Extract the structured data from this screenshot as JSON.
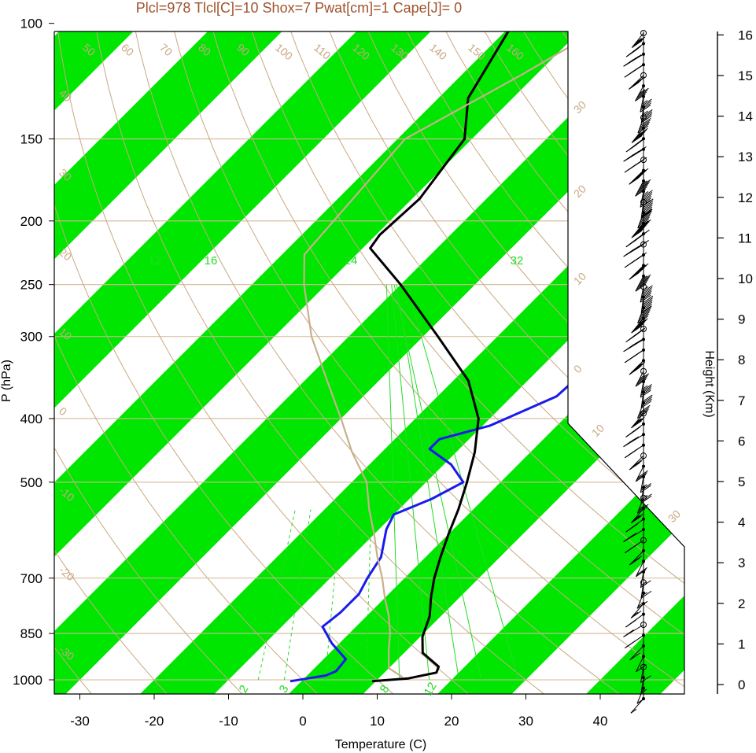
{
  "chart_data": {
    "type": "line",
    "title": "Plcl=978 Tlcl[C]=10 Shox=7 Pwat[cm]=1 Cape[J]= 0",
    "xlabel": "Temperature (C)",
    "ylabel": "P (hPa)",
    "y2label": "Height (Km)",
    "xlim": [
      -34,
      52
    ],
    "ylim_hpa": [
      1050,
      100
    ],
    "y_scale": "log",
    "x_ticks": [
      -30,
      -20,
      -10,
      0,
      10,
      20,
      30,
      40
    ],
    "y_ticks": [
      100,
      150,
      200,
      250,
      300,
      400,
      500,
      700,
      850,
      1000
    ],
    "height_ticks_km": [
      0,
      1,
      2,
      3,
      4,
      5,
      6,
      7,
      8,
      9,
      10,
      11,
      12,
      13,
      14,
      15,
      16
    ],
    "series": [
      {
        "role": "dewpoint",
        "color": "#1a1aee",
        "points": [
          [
            1005,
            -1.5
          ],
          [
            995,
            0.5
          ],
          [
            985,
            2.5
          ],
          [
            970,
            3.3
          ],
          [
            955,
            3.2
          ],
          [
            930,
            3.0
          ],
          [
            880,
            -1.0
          ],
          [
            830,
            -4.5
          ],
          [
            790,
            -4.0
          ],
          [
            740,
            -4.0
          ],
          [
            700,
            -5.0
          ],
          [
            650,
            -6.0
          ],
          [
            590,
            -9.0
          ],
          [
            560,
            -10.0
          ],
          [
            530,
            -7.0
          ],
          [
            500,
            -5.0
          ],
          [
            470,
            -9.0
          ],
          [
            445,
            -14.0
          ],
          [
            430,
            -14.0
          ],
          [
            410,
            -9.0
          ],
          [
            370,
            -4.0
          ],
          [
            330,
            -3.5
          ],
          [
            290,
            -5.0
          ],
          [
            260,
            -5.5
          ],
          [
            220,
            -4.5
          ],
          [
            200,
            -1.5
          ],
          [
            170,
            0.0
          ],
          [
            150,
            2.0
          ],
          [
            100,
            21.0
          ]
        ]
      },
      {
        "role": "temperature",
        "color": "#000000",
        "points": [
          [
            1005,
            9.5
          ],
          [
            995,
            14.0
          ],
          [
            975,
            17.0
          ],
          [
            955,
            16.5
          ],
          [
            910,
            12.5
          ],
          [
            860,
            10.3
          ],
          [
            800,
            8.5
          ],
          [
            750,
            6.2
          ],
          [
            700,
            4.0
          ],
          [
            650,
            2.0
          ],
          [
            600,
            0.0
          ],
          [
            550,
            -2.0
          ],
          [
            500,
            -4.5
          ],
          [
            450,
            -7.5
          ],
          [
            400,
            -11.5
          ],
          [
            350,
            -18.0
          ],
          [
            300,
            -28.0
          ],
          [
            250,
            -40.0
          ],
          [
            220,
            -49.0
          ],
          [
            210,
            -49.5
          ],
          [
            185,
            -49.0
          ],
          [
            150,
            -51.0
          ],
          [
            130,
            -56.0
          ],
          [
            100,
            -60.0
          ]
        ]
      },
      {
        "role": "parcel",
        "color": "#c8b08c",
        "points": [
          [
            990,
            13.0
          ],
          [
            960,
            10.0
          ],
          [
            900,
            7.5
          ],
          [
            850,
            5.5
          ],
          [
            800,
            3.0
          ],
          [
            750,
            0.0
          ],
          [
            700,
            -3.0
          ],
          [
            650,
            -6.5
          ],
          [
            600,
            -10.0
          ],
          [
            550,
            -14.0
          ],
          [
            500,
            -18.0
          ],
          [
            450,
            -24.0
          ],
          [
            400,
            -30.0
          ],
          [
            350,
            -37.0
          ],
          [
            300,
            -45.0
          ],
          [
            250,
            -53.0
          ],
          [
            225,
            -57.0
          ],
          [
            150,
            -59.0
          ],
          [
            120,
            -52.0
          ],
          [
            100,
            -47.0
          ]
        ]
      }
    ],
    "background": {
      "isotherm_band_color": "#00e600",
      "pressure_line_color": "#d4b896",
      "dry_adiabat_color": "#c8a882",
      "mixing_ratio_color": "#22dd22",
      "dry_adiabat_labels": [
        "50",
        "60",
        "70",
        "80",
        "90",
        "100",
        "110",
        "120",
        "130",
        "140",
        "150",
        "160"
      ],
      "dry_adiabat_left_labels": [
        "40",
        "30",
        "20",
        "10",
        "0",
        "-10",
        "-20",
        "-30"
      ],
      "isotherm_right_labels": [
        "30",
        "20",
        "10",
        "0",
        "10",
        "30"
      ],
      "mixing_ratio_upper_labels": [
        "12",
        "16",
        "24",
        "32"
      ],
      "mixing_ratio_lower_labels": [
        "2",
        "3",
        "8",
        "12"
      ]
    },
    "wind_profile": {
      "column_label": "",
      "barbs": 64,
      "direction_deg": "mostly westerly",
      "points": [
        [
          100,
          35
        ],
        [
          130,
          45
        ],
        [
          150,
          55
        ],
        [
          170,
          65
        ],
        [
          200,
          70
        ],
        [
          250,
          65
        ],
        [
          300,
          50
        ],
        [
          350,
          45
        ],
        [
          400,
          35
        ],
        [
          450,
          30
        ],
        [
          500,
          25
        ],
        [
          550,
          25
        ],
        [
          600,
          20
        ],
        [
          650,
          20
        ],
        [
          700,
          15
        ],
        [
          750,
          15
        ],
        [
          800,
          10
        ],
        [
          850,
          10
        ],
        [
          900,
          10
        ],
        [
          950,
          10
        ],
        [
          1000,
          5
        ]
      ]
    },
    "legend": "none",
    "grid": false
  }
}
